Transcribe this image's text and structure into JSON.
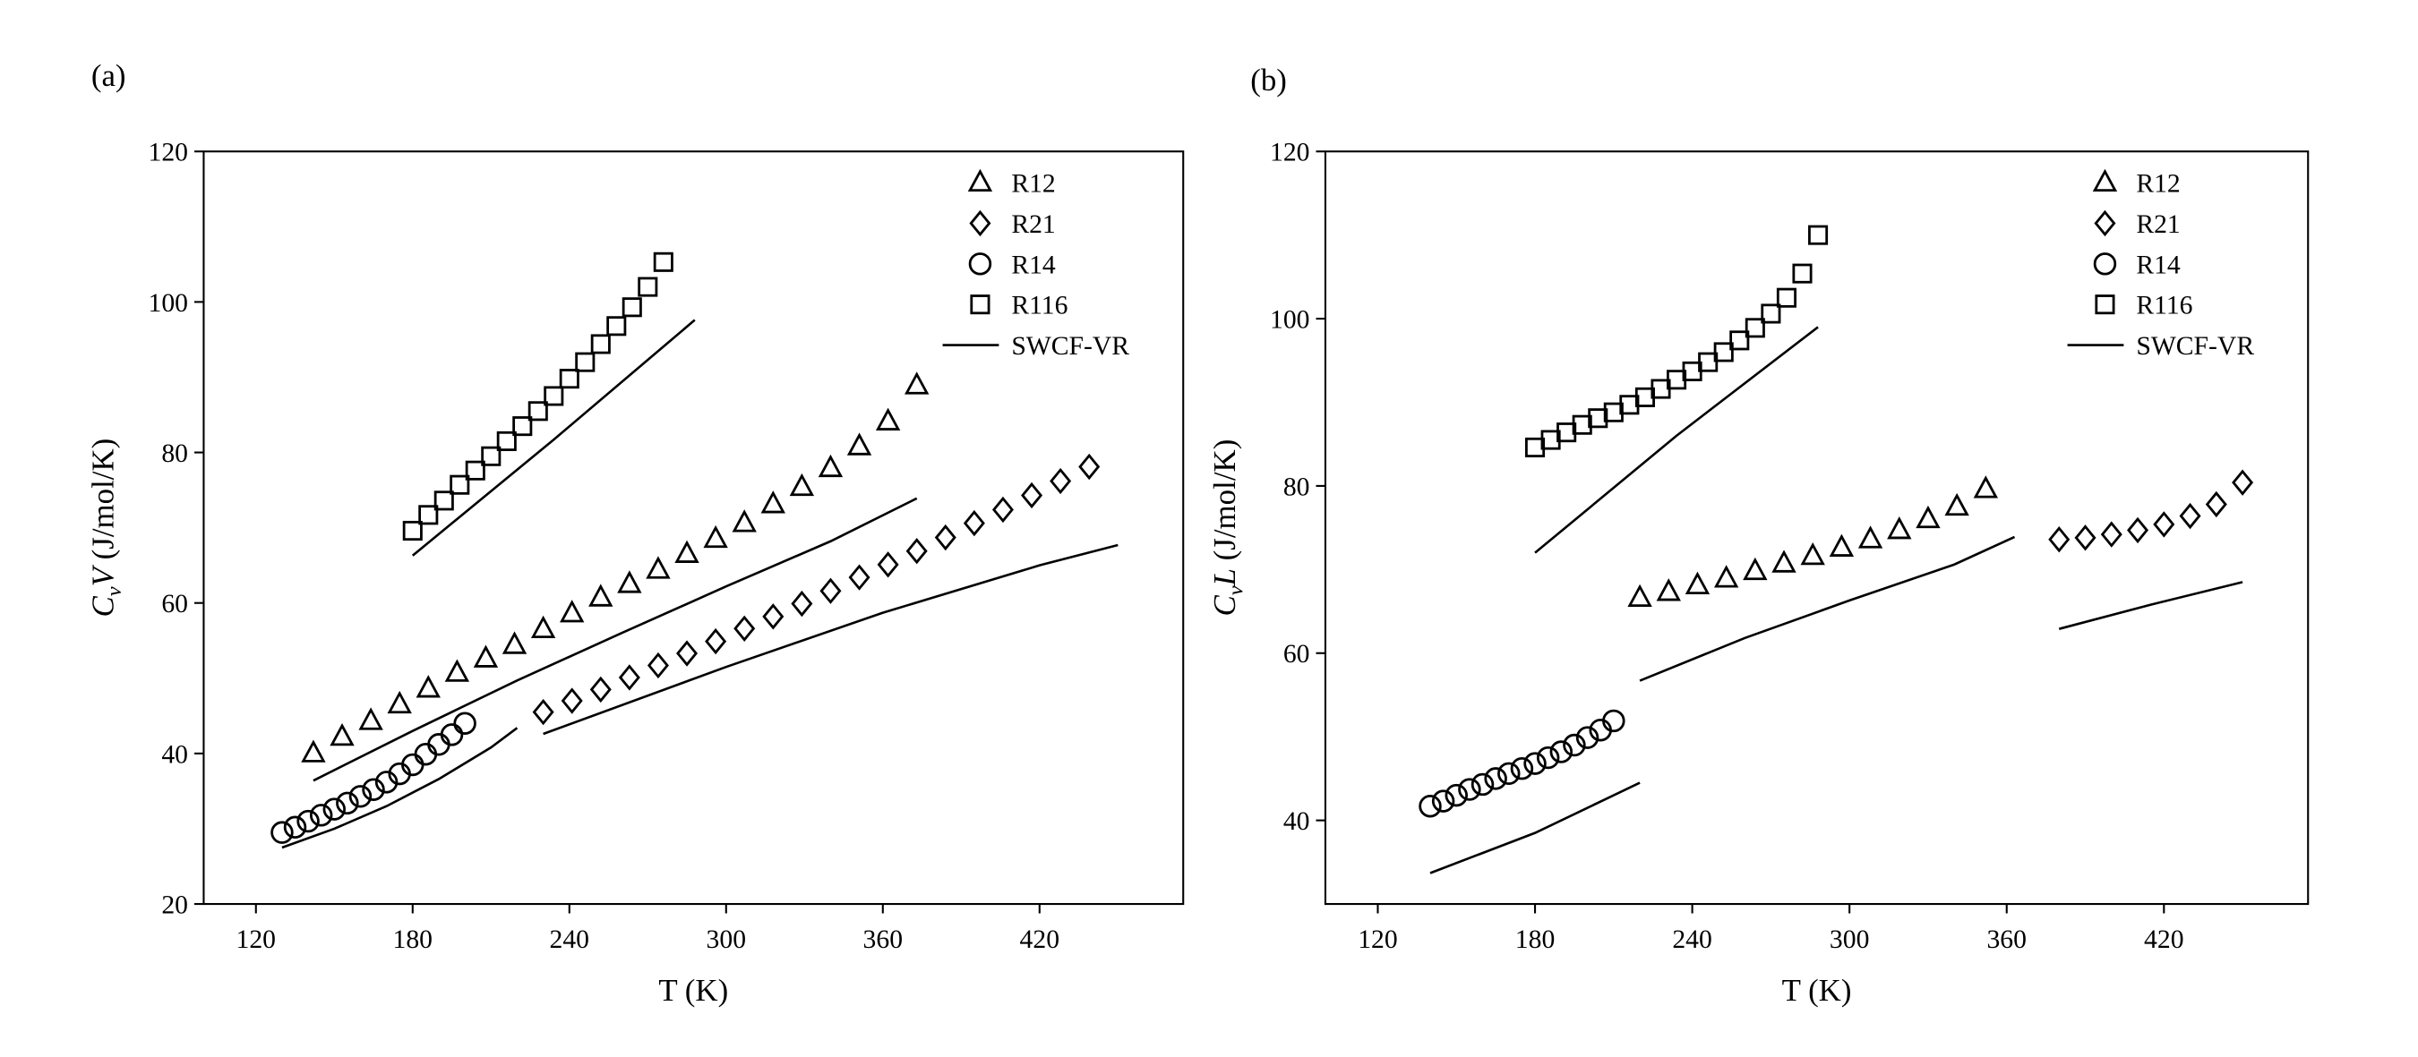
{
  "chart_data": [
    {
      "type": "scatter",
      "label": "(a)",
      "xlabel": "T (K)",
      "ylabel": {
        "main": "C",
        "sub": "v",
        "tail": "V",
        "unit": "(J/mol/K)"
      },
      "xlim": [
        100,
        475
      ],
      "xticks": [
        120,
        180,
        240,
        300,
        360,
        420
      ],
      "ylim": [
        20,
        120
      ],
      "yticks": [
        20,
        40,
        60,
        80,
        100,
        120
      ],
      "legend": "upper right",
      "series": [
        {
          "name": "R12",
          "marker": "triangle",
          "color": "#000000",
          "x": [
            142,
            153,
            164,
            175,
            186,
            197,
            208,
            219,
            230,
            241,
            252,
            263,
            274,
            285,
            296,
            307,
            318,
            329,
            340,
            351,
            362,
            373
          ],
          "values": [
            40,
            42.2,
            44.3,
            46.5,
            48.6,
            50.7,
            52.6,
            54.4,
            56.5,
            58.6,
            60.7,
            62.5,
            64.4,
            66.5,
            68.5,
            70.6,
            73.1,
            75.4,
            77.9,
            80.8,
            84.1,
            88.9
          ]
        },
        {
          "name": "R21",
          "marker": "diamond",
          "color": "#000000",
          "x": [
            230,
            241,
            252,
            263,
            274,
            285,
            296,
            307,
            318,
            329,
            340,
            351,
            362,
            373,
            384,
            395,
            406,
            417,
            428,
            439
          ],
          "values": [
            45.5,
            47.0,
            48.5,
            50.1,
            51.7,
            53.3,
            54.9,
            56.6,
            58.2,
            59.9,
            61.6,
            63.4,
            65.1,
            66.9,
            68.7,
            70.6,
            72.4,
            74.3,
            76.2,
            78.1
          ]
        },
        {
          "name": "R14",
          "marker": "circle",
          "color": "#000000",
          "x": [
            130,
            135,
            140,
            145,
            150,
            155,
            160,
            165,
            170,
            175,
            180,
            185,
            190,
            195,
            200
          ],
          "values": [
            29.5,
            30.2,
            31,
            31.8,
            32.6,
            33.4,
            34.3,
            35.2,
            36.2,
            37.3,
            38.5,
            39.9,
            41.2,
            42.5,
            44.0
          ]
        },
        {
          "name": "R116",
          "marker": "square",
          "color": "#000000",
          "x": [
            180,
            186,
            192,
            198,
            204,
            210,
            216,
            222,
            228,
            234,
            240,
            246,
            252,
            258,
            264,
            270,
            276
          ],
          "values": [
            69.6,
            71.7,
            73.6,
            75.7,
            77.6,
            79.5,
            81.5,
            83.5,
            85.5,
            87.5,
            89.8,
            92.0,
            94.4,
            96.8,
            99.3,
            102.0,
            105.3
          ]
        },
        {
          "name": "SWCF-VR",
          "marker": "line",
          "color": "#000000",
          "x": [
            142,
            180,
            220,
            260,
            300,
            340,
            373,
            null,
            230,
            300,
            360,
            420,
            450,
            null,
            130,
            150,
            170,
            190,
            210,
            220,
            null,
            180,
            234,
            288
          ],
          "values": [
            36.4,
            43,
            49.7,
            56,
            62.2,
            68.2,
            73.9,
            null,
            42.6,
            51.5,
            58.7,
            65,
            67.7,
            null,
            27.5,
            30,
            33,
            36.6,
            40.8,
            43.4,
            null,
            66.3,
            81.7,
            97.6
          ]
        }
      ]
    },
    {
      "type": "scatter",
      "label": "(b)",
      "xlabel": "T (K)",
      "ylabel": {
        "main": "C",
        "sub": "v",
        "tail": "L",
        "unit": "(J/mol/K)"
      },
      "xlim": [
        100,
        475
      ],
      "xticks": [
        120,
        180,
        240,
        300,
        360,
        420
      ],
      "ylim": [
        30,
        120
      ],
      "yticks": [
        40,
        60,
        80,
        100,
        120
      ],
      "legend": "upper right",
      "series": [
        {
          "name": "R12",
          "marker": "triangle",
          "color": "#000000",
          "x": [
            220,
            231,
            242,
            253,
            264,
            275,
            286,
            297,
            308,
            319,
            330,
            341,
            352
          ],
          "values": [
            66.6,
            67.3,
            68.1,
            68.9,
            69.8,
            70.7,
            71.6,
            72.6,
            73.6,
            74.7,
            76.0,
            77.5,
            79.6
          ]
        },
        {
          "name": "R21",
          "marker": "diamond",
          "color": "#000000",
          "x": [
            380,
            390,
            400,
            410,
            420,
            430,
            440,
            450
          ],
          "values": [
            73.6,
            73.8,
            74.2,
            74.7,
            75.4,
            76.4,
            77.8,
            80.4
          ]
        },
        {
          "name": "R14",
          "marker": "circle",
          "color": "#000000",
          "x": [
            140,
            145,
            150,
            155,
            160,
            165,
            170,
            175,
            180,
            185,
            190,
            195,
            200,
            205,
            210
          ],
          "values": [
            41.7,
            42.3,
            43.0,
            43.7,
            44.3,
            45.0,
            45.6,
            46.2,
            46.8,
            47.5,
            48.2,
            49.0,
            49.9,
            50.8,
            51.9
          ]
        },
        {
          "name": "R116",
          "marker": "square",
          "color": "#000000",
          "x": [
            180,
            186,
            192,
            198,
            204,
            210,
            216,
            222,
            228,
            234,
            240,
            246,
            252,
            258,
            264,
            270,
            276,
            282,
            288
          ],
          "values": [
            84.6,
            85.5,
            86.4,
            87.3,
            88.1,
            88.8,
            89.7,
            90.6,
            91.6,
            92.7,
            93.7,
            94.8,
            96.0,
            97.4,
            98.9,
            100.6,
            102.5,
            105.4,
            110.0
          ]
        },
        {
          "name": "SWCF-VR",
          "marker": "line",
          "color": "#000000",
          "x": [
            220,
            260,
            300,
            340,
            363,
            null,
            380,
            415,
            450,
            null,
            140,
            180,
            220,
            null,
            180,
            234,
            288
          ],
          "values": [
            56.7,
            61.8,
            66.3,
            70.6,
            73.9,
            null,
            62.9,
            65.8,
            68.5,
            null,
            33.7,
            38.5,
            44.5,
            null,
            72,
            86,
            99
          ]
        }
      ]
    }
  ]
}
